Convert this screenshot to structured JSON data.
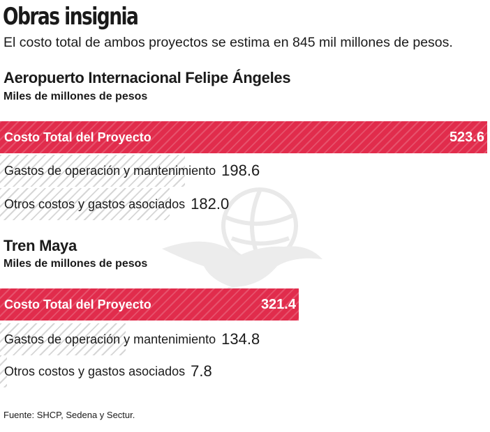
{
  "title": "Obras insignia",
  "subtitle": "El costo total de ambos proyectos se estima en 845 mil millones de pesos.",
  "source": "Fuente: SHCP, Sedena y Sectur.",
  "colors": {
    "total_bar": "#e12c4c",
    "hatch": "#d6d6d6",
    "text": "#1a1a1a"
  },
  "chart_data": [
    {
      "type": "bar",
      "title": "Aeropuerto Internacional Felipe Ángeles",
      "unit": "Miles de millones de pesos",
      "categories": [
        "Costo Total del Proyecto",
        "Gastos de operación y mantenimiento",
        "Otros costos y gastos asociados"
      ],
      "values": [
        523.6,
        198.6,
        182.0
      ],
      "labels": [
        "523.6",
        "198.6",
        "182.0"
      ]
    },
    {
      "type": "bar",
      "title": "Tren Maya",
      "unit": "Miles de millones de pesos",
      "categories": [
        "Costo Total del Proyecto",
        "Gastos de operación y mantenimiento",
        "Otros costos y gastos asociados"
      ],
      "values": [
        321.4,
        134.8,
        7.8
      ],
      "labels": [
        "321.4",
        "134.8",
        "7.8"
      ]
    }
  ]
}
